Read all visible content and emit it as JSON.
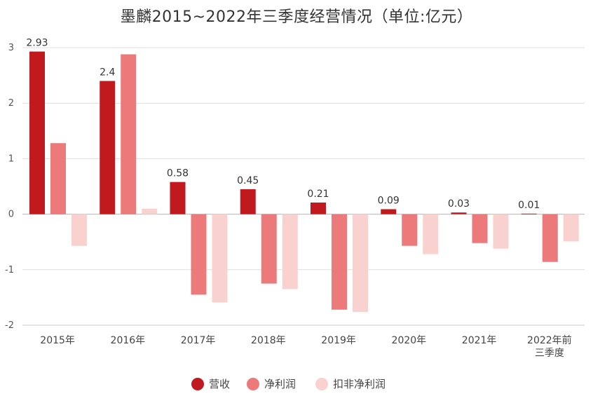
{
  "chart_data": {
    "type": "bar",
    "title": "墨麟2015~2022年三季度经营情况（单位:亿元）",
    "categories": [
      "2015年",
      "2016年",
      "2017年",
      "2018年",
      "2019年",
      "2020年",
      "2021年",
      "2022年前\n三季度"
    ],
    "series": [
      {
        "name": "营收",
        "color": "#c0191e",
        "values": [
          2.93,
          2.4,
          0.58,
          0.45,
          0.21,
          0.09,
          0.03,
          0.01
        ]
      },
      {
        "name": "净利润",
        "color": "#ec7a7a",
        "values": [
          1.28,
          2.88,
          -1.45,
          -1.25,
          -1.72,
          -0.57,
          -0.52,
          -0.86
        ]
      },
      {
        "name": "扣非净利润",
        "color": "#f9d1ce",
        "values": [
          -0.57,
          0.1,
          -1.59,
          -1.35,
          -1.76,
          -0.72,
          -0.62,
          -0.49
        ]
      }
    ],
    "data_labels": [
      "2.93",
      "2.4",
      "0.58",
      "0.45",
      "0.21",
      "0.09",
      "0.03",
      "0.01"
    ],
    "y_ticks": [
      "3",
      "2",
      "1",
      "0",
      "-1",
      "-2"
    ],
    "ylim": [
      -2,
      3
    ],
    "grid": true,
    "legend_position": "bottom"
  }
}
